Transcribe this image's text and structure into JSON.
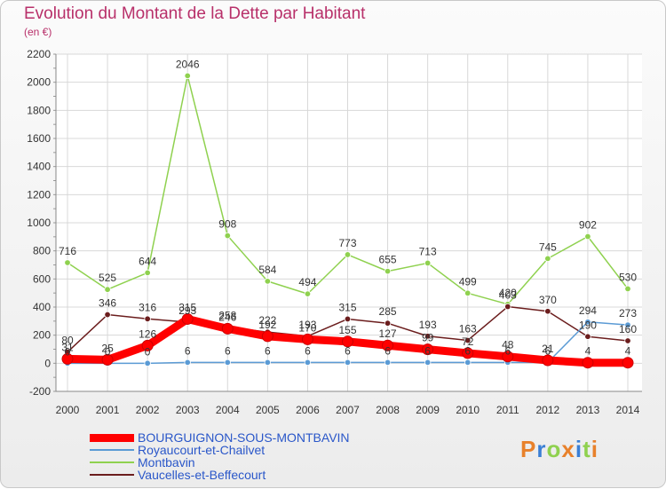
{
  "chart_data": {
    "type": "line",
    "title": "Evolution du Montant de la Dette par Habitant",
    "subtitle": "(en €)",
    "xlabel": "",
    "ylabel": "",
    "ylim": [
      -200,
      2200
    ],
    "yticks": [
      -200,
      0,
      200,
      400,
      600,
      800,
      1000,
      1200,
      1400,
      1600,
      1800,
      2000,
      2200
    ],
    "categories": [
      "2000",
      "2001",
      "2002",
      "2003",
      "2004",
      "2005",
      "2006",
      "2007",
      "2008",
      "2009",
      "2010",
      "2011",
      "2012",
      "2013",
      "2014"
    ],
    "grid": true,
    "legend_position": "bottom-left",
    "series": [
      {
        "name": "BOURGUIGNON-SOUS-MONTBAVIN",
        "color": "#ff0000",
        "values": [
          31,
          25,
          126,
          315,
          246,
          192,
          170,
          155,
          127,
          99,
          72,
          48,
          21,
          4,
          4
        ]
      },
      {
        "name": "Royaucourt-et-Chailvet",
        "color": "#5b9bd5",
        "values": [
          0,
          0,
          0,
          6,
          6,
          6,
          6,
          6,
          6,
          6,
          6,
          6,
          6,
          294,
          273
        ]
      },
      {
        "name": "Montbavin",
        "color": "#8fd14f",
        "values": [
          716,
          525,
          644,
          2046,
          908,
          584,
          494,
          773,
          655,
          713,
          499,
          420,
          745,
          902,
          530
        ]
      },
      {
        "name": "Vaucelles-et-Beffecourt",
        "color": "#6b1d1d",
        "values": [
          80,
          346,
          316,
          293,
          258,
          222,
          193,
          315,
          285,
          193,
          163,
          403,
          370,
          190,
          160
        ]
      }
    ]
  },
  "logo": {
    "text": "Proxiti",
    "letter_colors": [
      "#e8812b",
      "#3a7fd5",
      "#8fd14f",
      "#e8812b",
      "#3a7fd5",
      "#8fd14f",
      "#e8812b"
    ]
  }
}
